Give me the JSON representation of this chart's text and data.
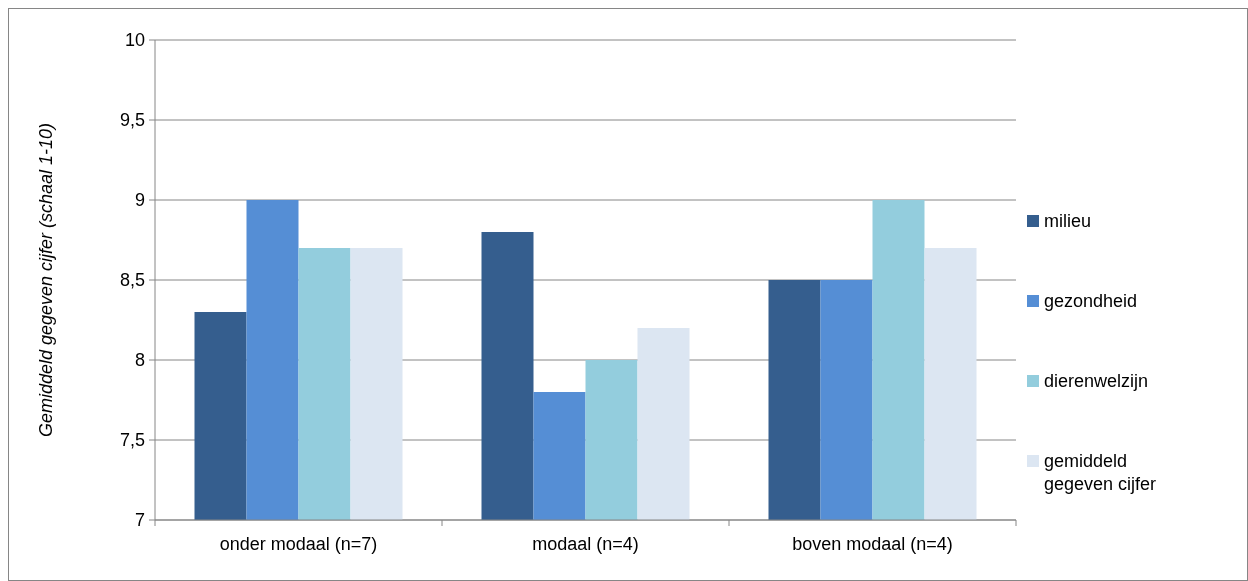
{
  "chart_data": {
    "type": "bar",
    "ylabel": "Gemiddeld gegeven cijfer (schaal 1-10)",
    "categories": [
      "onder modaal (n=7)",
      "modaal (n=4)",
      "boven modaal (n=4)"
    ],
    "series": [
      {
        "name": "milieu",
        "color": "#355e8e",
        "values": [
          8.3,
          8.8,
          8.5
        ]
      },
      {
        "name": "gezondheid",
        "color": "#558ed5",
        "values": [
          9.0,
          7.8,
          8.5
        ]
      },
      {
        "name": "dierenwelzijn",
        "color": "#93cddd",
        "values": [
          8.7,
          8.0,
          9.0
        ]
      },
      {
        "name": "gemiddeld gegeven cijfer",
        "color": "#dce6f2",
        "values": [
          8.7,
          8.2,
          8.7
        ]
      }
    ],
    "ylim": [
      7,
      10
    ],
    "yticks": [
      7,
      {
        "value": 7.5,
        "label": "7,5"
      },
      8,
      {
        "value": 8.5,
        "label": "8,5"
      },
      9,
      {
        "value": 9.5,
        "label": "9,5"
      },
      10
    ],
    "grid": "y",
    "legend": "right"
  }
}
